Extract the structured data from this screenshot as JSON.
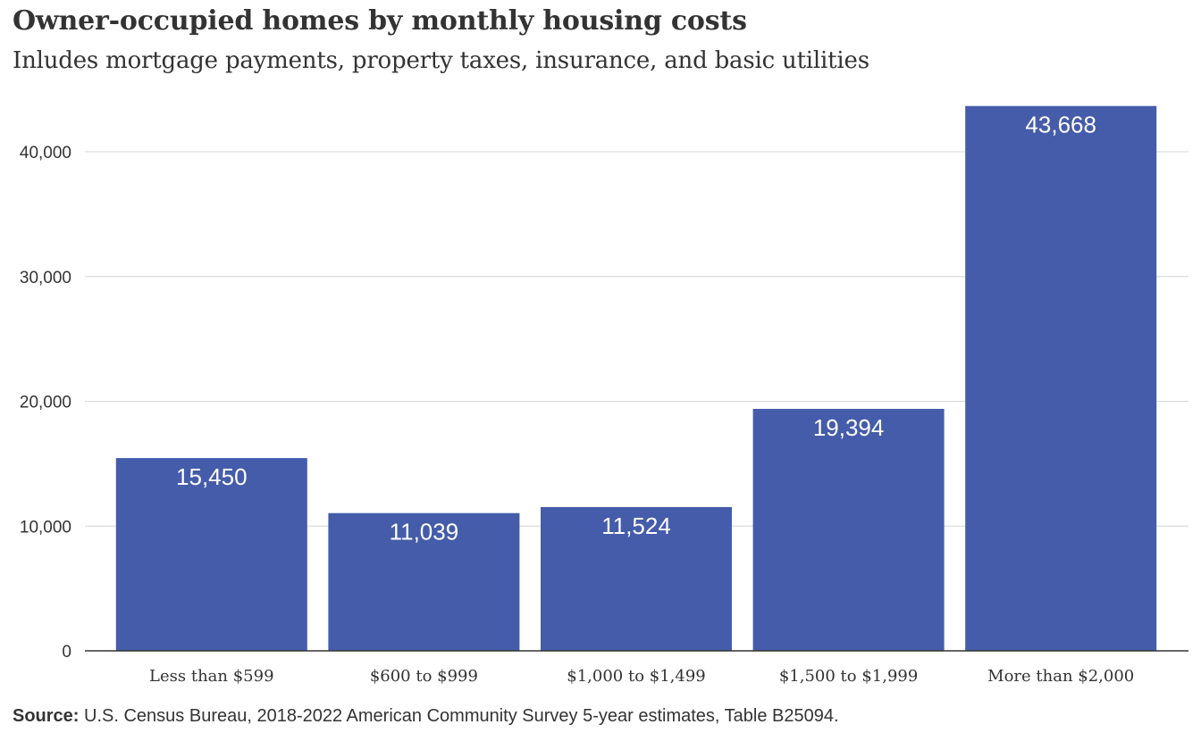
{
  "header": {
    "title": "Owner-occupied  homes by monthly housing costs",
    "subtitle": "Inludes mortgage payments, property taxes, insurance, and basic utilities"
  },
  "footer": {
    "source_label": "Source:",
    "source_text": "U.S. Census Bureau,  2018-2022  American Community Survey 5-year estimates, Table B25094."
  },
  "colors": {
    "bar": "#455CAA",
    "bar_label": "#ffffff",
    "grid": "#d4d4d4",
    "axis": "#333333",
    "tick_text": "#333333"
  },
  "chart_data": {
    "type": "bar",
    "title": "Owner-occupied  homes by monthly housing costs",
    "subtitle": "Inludes mortgage payments, property taxes, insurance, and basic utilities",
    "xlabel": "",
    "ylabel": "",
    "categories": [
      "Less than $599",
      "$600 to $999",
      "$1,000 to $1,499",
      "$1,500 to $1,999",
      "More than $2,000"
    ],
    "values": [
      15450,
      11039,
      11524,
      19394,
      43668
    ],
    "value_labels": [
      "15,450",
      "11,039",
      "11,524",
      "19,394",
      "43,668"
    ],
    "yticks": [
      0,
      10000,
      20000,
      30000,
      40000
    ],
    "ytick_labels": [
      "0",
      "10,000",
      "20,000",
      "30,000",
      "40,000"
    ],
    "ylim": [
      0,
      43668
    ],
    "grid": true,
    "legend": "none"
  }
}
